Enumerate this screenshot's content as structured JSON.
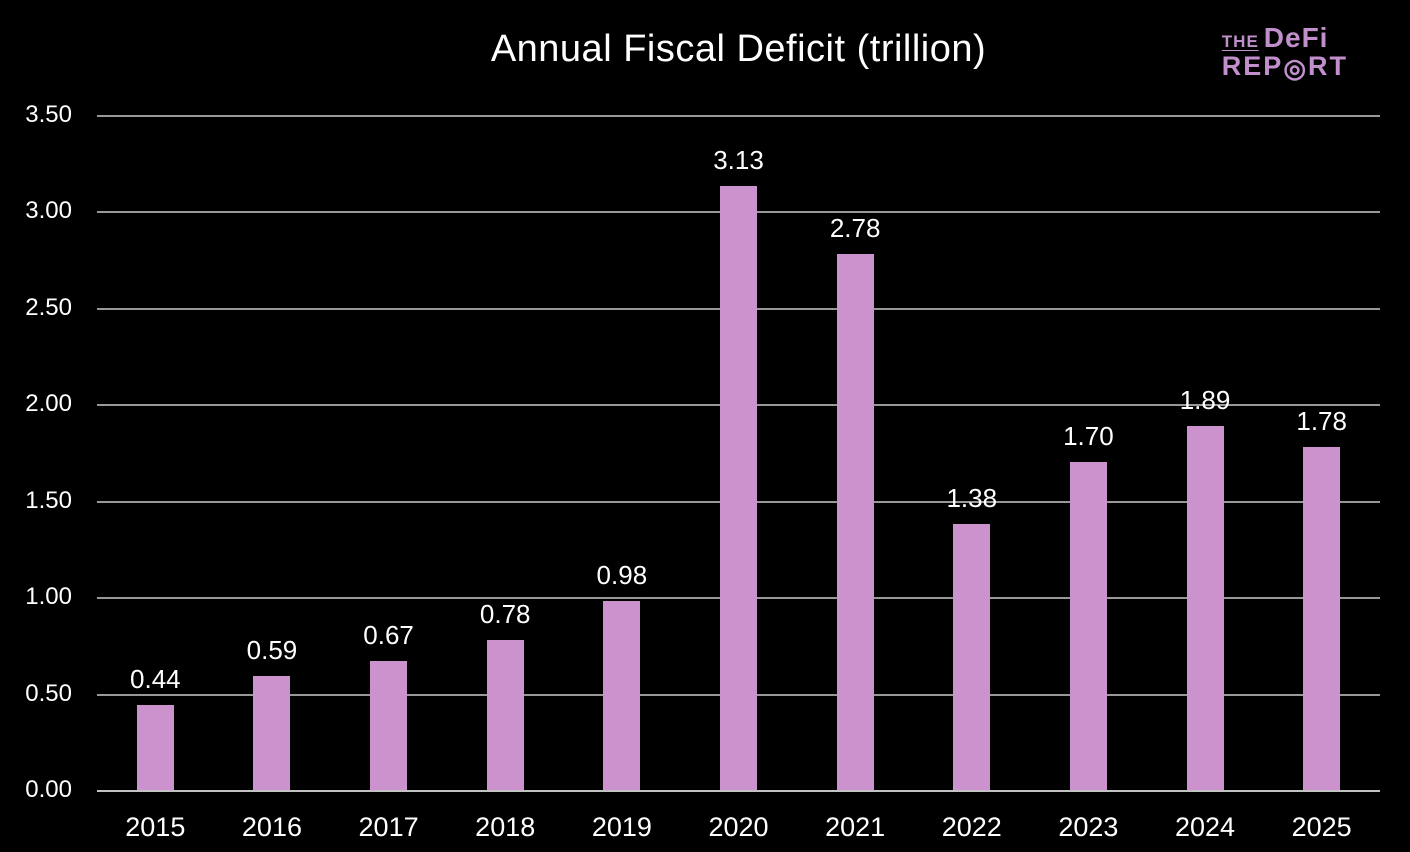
{
  "header": {
    "title": "Annual Fiscal Deficit (trillion)",
    "logo": {
      "the": "THE",
      "defi": "DeFi",
      "report_pre": "REP",
      "report_o": "◎",
      "report_post": "RT"
    }
  },
  "chart_data": {
    "type": "bar",
    "title": "Annual Fiscal Deficit (trillion)",
    "categories": [
      "2015",
      "2016",
      "2017",
      "2018",
      "2019",
      "2020",
      "2021",
      "2022",
      "2023",
      "2024",
      "2025"
    ],
    "values": [
      0.44,
      0.59,
      0.67,
      0.78,
      0.98,
      3.13,
      2.78,
      1.38,
      1.7,
      1.89,
      1.78
    ],
    "value_labels": [
      "0.44",
      "0.59",
      "0.67",
      "0.78",
      "0.98",
      "3.13",
      "2.78",
      "1.38",
      "1.70",
      "1.89",
      "1.78"
    ],
    "xlabel": "",
    "ylabel": "",
    "ylim": [
      0,
      3.5
    ],
    "ytick_step": 0.5,
    "ytick_labels": [
      "0.00",
      "0.50",
      "1.00",
      "1.50",
      "2.00",
      "2.50",
      "3.00",
      "3.50"
    ],
    "grid": true,
    "legend": false,
    "colors": {
      "background": "#000000",
      "bar": "#cb92ce",
      "gridline": "#989898",
      "axis_line": "#c2c2c2",
      "text": "#ffffff",
      "logo": "#c28fcd"
    }
  }
}
